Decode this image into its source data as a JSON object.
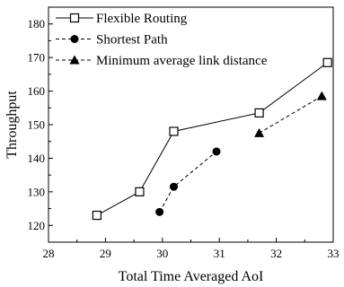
{
  "chart_data": {
    "type": "line",
    "xlabel": "Total Time Averaged AoI",
    "ylabel": "Throughput",
    "xlim": [
      28,
      33
    ],
    "ylim": [
      115,
      185
    ],
    "xticks": [
      "28",
      "29",
      "30",
      "31",
      "32",
      "33"
    ],
    "yticks": [
      "120",
      "130",
      "140",
      "150",
      "160",
      "170",
      "180"
    ],
    "legend_position": "top-left",
    "grid": false,
    "series": [
      {
        "name": "Flexible Routing",
        "marker": "square-open",
        "line": "solid",
        "points": [
          [
            28.85,
            123
          ],
          [
            29.6,
            130
          ],
          [
            30.2,
            148
          ],
          [
            31.7,
            153.5
          ],
          [
            32.9,
            168.5
          ]
        ]
      },
      {
        "name": "Shortest Path",
        "marker": "circle-filled",
        "line": "dashed",
        "points": [
          [
            29.95,
            124
          ],
          [
            30.2,
            131.5
          ],
          [
            30.95,
            142
          ]
        ]
      },
      {
        "name": "Minimum average link distance",
        "marker": "triangle-filled",
        "line": "dashed",
        "points": [
          [
            31.7,
            147.5
          ],
          [
            32.8,
            158.5
          ]
        ]
      }
    ]
  }
}
